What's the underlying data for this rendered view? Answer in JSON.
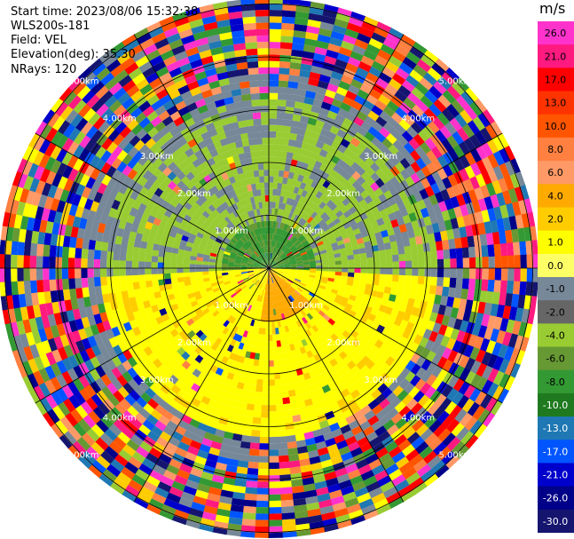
{
  "header": {
    "start_time": "Start time: 2023/08/06 15:32:38",
    "station": "WLS200s-181",
    "field": "Field: VEL",
    "elevation": "Elevation(deg): 35.30",
    "nrays": "NRays: 120"
  },
  "chart_data": {
    "type": "heatmap",
    "projection": "polar-ppi",
    "field": "VEL",
    "units": "m/s",
    "nrays": 120,
    "elevation_deg": 35.3,
    "range_ring_labels": [
      "1.00km",
      "2.00km",
      "3.00km",
      "4.00km",
      "5.00km"
    ],
    "colorbar": {
      "title": "m/s",
      "ticks": [
        "26.0",
        "21.0",
        "17.0",
        "13.0",
        "10.0",
        "8.0",
        "6.0",
        "4.0",
        "2.0",
        "1.0",
        "0.0",
        "-1.0",
        "-2.0",
        "-4.0",
        "-6.0",
        "-8.0",
        "-10.0",
        "-13.0",
        "-17.0",
        "-21.0",
        "-26.0",
        "-30.0"
      ],
      "colors": [
        "#ff33cc",
        "#ff1a80",
        "#ff0000",
        "#ff3300",
        "#ff5500",
        "#ff8040",
        "#ff9966",
        "#ffaa00",
        "#ffcc00",
        "#ffff00",
        "#ffff66",
        "#778899",
        "#666666",
        "#99cc33",
        "#669933",
        "#339933",
        "#1f7a1f",
        "#1f78b4",
        "#0055ff",
        "#0000cc",
        "#000088",
        "#151570"
      ]
    }
  }
}
